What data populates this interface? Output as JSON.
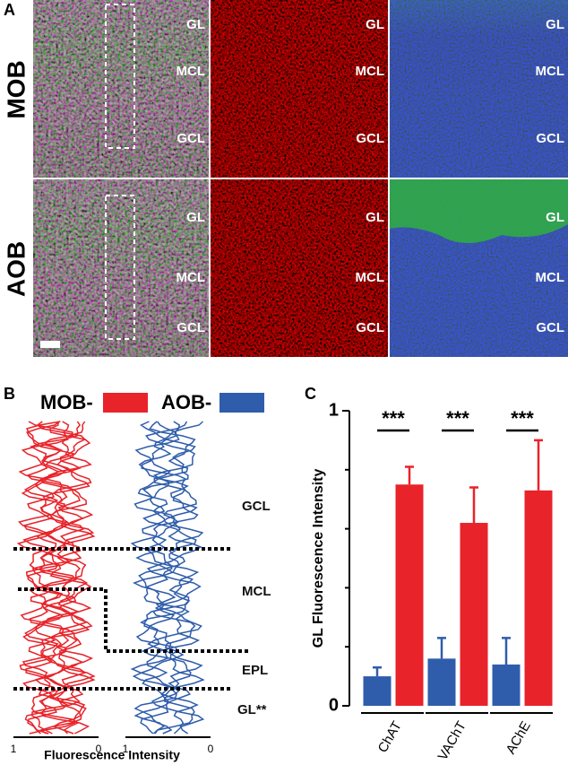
{
  "panel_a": {
    "label": "A",
    "row_labels": [
      "MOB",
      "AOB"
    ],
    "layer_labels": [
      "GL",
      "MCL",
      "GCL"
    ]
  },
  "panel_b": {
    "label": "B",
    "legend": [
      {
        "name": "MOB-",
        "color": "#e8232a"
      },
      {
        "name": "AOB-",
        "color": "#2f5dab"
      }
    ],
    "layer_labels": [
      "GCL",
      "MCL",
      "EPL",
      "GL**"
    ],
    "xticks": [
      1,
      0
    ],
    "xlabel": "Fluorescence Intensity"
  },
  "chart_data": {
    "type": "bar",
    "label": "C",
    "ylabel": "GL Fluorescence Intensity",
    "categories": [
      "ChAT",
      "VAChT",
      "AChE"
    ],
    "series": [
      {
        "color": "#2f5dab",
        "values": [
          0.1,
          0.16,
          0.14
        ],
        "errors": [
          0.03,
          0.07,
          0.09
        ]
      },
      {
        "color": "#e8232a",
        "values": [
          0.75,
          0.62,
          0.73
        ],
        "errors": [
          0.06,
          0.12,
          0.17
        ]
      }
    ],
    "ylim": [
      0,
      1
    ],
    "yticks": [
      0,
      1
    ],
    "minor_yticks": [
      0.2,
      0.4,
      0.6,
      0.8
    ],
    "annotations": [
      "***",
      "***",
      "***"
    ]
  }
}
